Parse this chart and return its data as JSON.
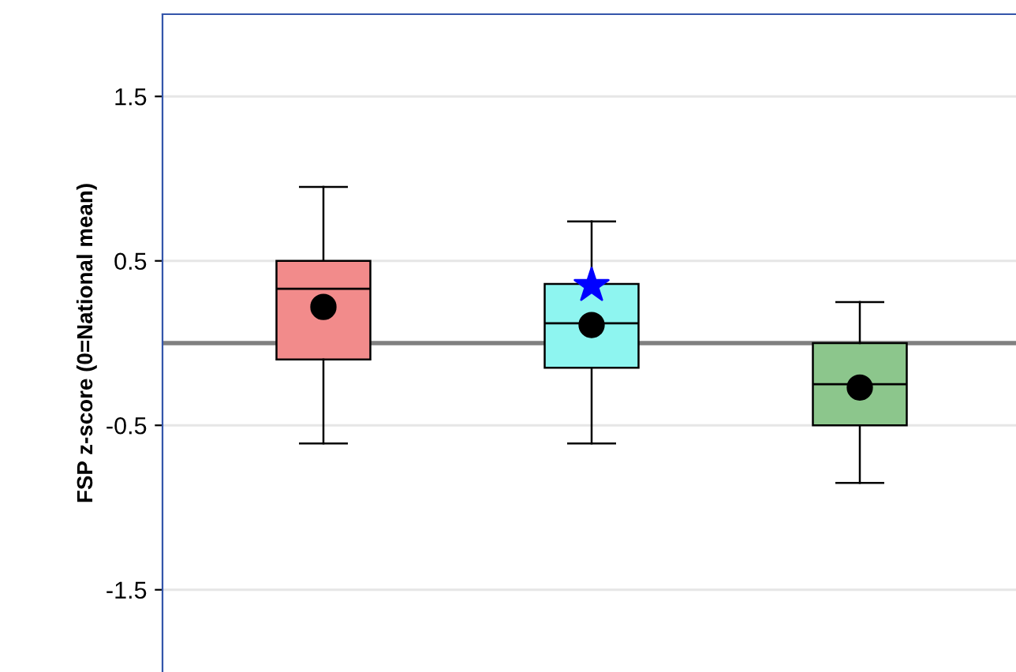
{
  "chart_data": {
    "type": "box",
    "ylabel": "FSP z-score (0=National mean)",
    "categories": [
      null,
      null,
      null
    ],
    "boxes": [
      {
        "low": -0.61,
        "q1": -0.1,
        "median": 0.33,
        "q3": 0.5,
        "high": 0.95,
        "mean": 0.22
      },
      {
        "low": -0.61,
        "q1": -0.15,
        "median": 0.12,
        "q3": 0.36,
        "high": 0.74,
        "mean": 0.11
      },
      {
        "low": -0.85,
        "q1": -0.5,
        "median": -0.25,
        "q3": 0.0,
        "high": 0.25,
        "mean": -0.27
      }
    ],
    "colors": [
      "#f28b8b",
      "#8ef5f0",
      "#8cc68c"
    ],
    "series": [
      {
        "type": "scatter",
        "marker": "star",
        "color": "#0000ff",
        "values": [
          null,
          0.35,
          null
        ]
      }
    ],
    "ylim": [
      -2,
      2
    ],
    "yticks": [
      1.5,
      0.5,
      -0.5,
      -1.5
    ],
    "grid": "y",
    "tick_labels": "y",
    "ref_lines": [
      {
        "axis": "y",
        "value": 0,
        "color": "#808080"
      }
    ]
  }
}
